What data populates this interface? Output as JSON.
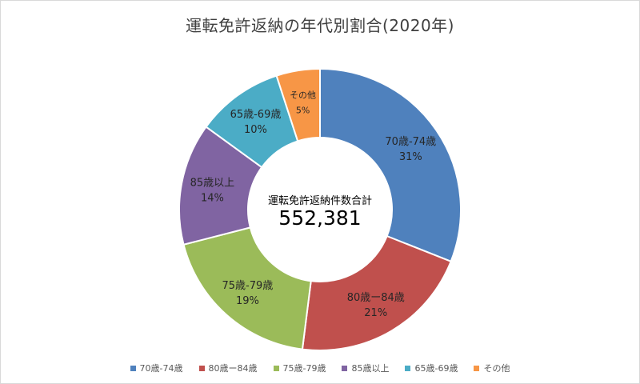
{
  "chart_data": {
    "type": "pie",
    "title": "運転免許返納の年代別割合(2020年)",
    "center_caption": "運転免許返納件数合計",
    "center_value": "552,381",
    "categories": [
      "70歳-74歳",
      "80歳ー84歳",
      "75歳-79歳",
      "85歳以上",
      "65歳-69歳",
      "その他"
    ],
    "values": [
      31,
      21,
      19,
      14,
      10,
      5
    ],
    "value_labels": [
      "31%",
      "21%",
      "19%",
      "14%",
      "10%",
      "5%"
    ],
    "colors": [
      "#4f81bd",
      "#c0504d",
      "#9bbb59",
      "#8064a2",
      "#4bacc6",
      "#f79646"
    ],
    "legend_position": "bottom"
  }
}
